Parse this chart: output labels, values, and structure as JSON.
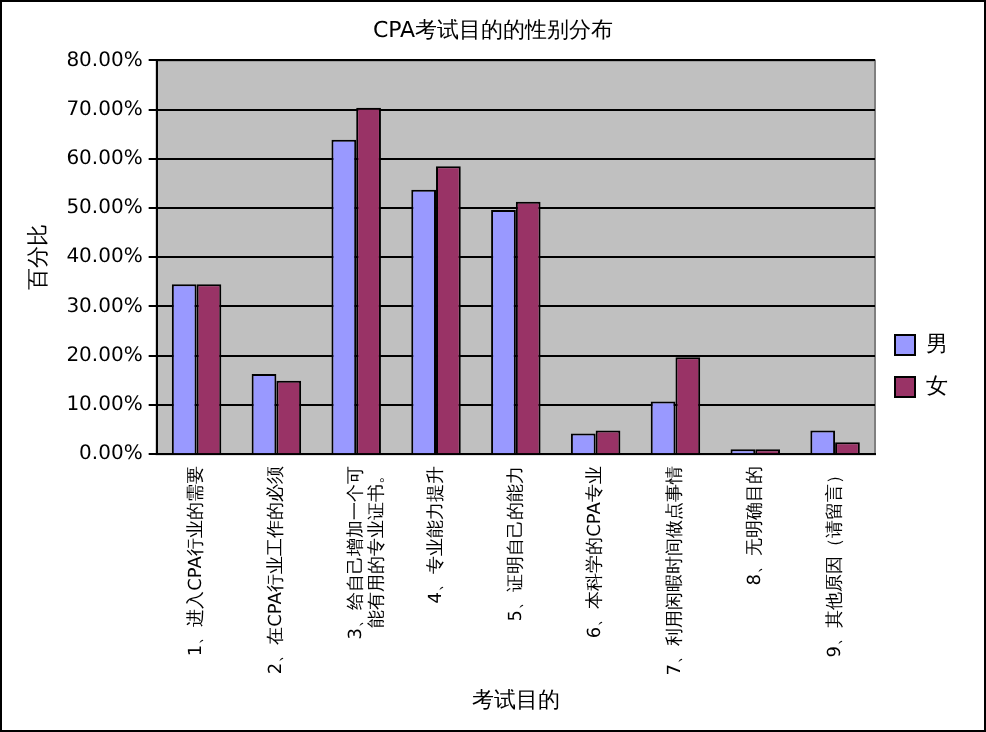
{
  "chart_data": {
    "type": "bar",
    "title": "CPA考试目的的性别分布",
    "xlabel": "考试目的",
    "ylabel": "百分比",
    "categories": [
      "1、进入CPA行业的需要",
      "2、在CPA行业工作的必须",
      "3、给自己增加一个可能有用的专业证书。",
      "4、专业能力提升",
      "5、证明自己的能力",
      "6、本科学的CPA专业",
      "7、利用闲暇时间做点事情",
      "8、无明确目的",
      "9、其他原因（请留言）"
    ],
    "series": [
      {
        "name": "男",
        "color": "#9999ff",
        "values": [
          34.5,
          16.3,
          63.9,
          53.7,
          49.6,
          4.2,
          10.7,
          1.0,
          4.8
        ]
      },
      {
        "name": "女",
        "color": "#993366",
        "values": [
          34.5,
          14.9,
          70.4,
          58.5,
          51.3,
          4.8,
          19.7,
          1.0,
          2.4
        ]
      }
    ],
    "ylim": [
      0,
      80
    ],
    "yticks": [
      {
        "value": 0,
        "label": "0.00%"
      },
      {
        "value": 10,
        "label": "10.00%"
      },
      {
        "value": 20,
        "label": "20.00%"
      },
      {
        "value": 30,
        "label": "30.00%"
      },
      {
        "value": 40,
        "label": "40.00%"
      },
      {
        "value": 50,
        "label": "50.00%"
      },
      {
        "value": 60,
        "label": "60.00%"
      },
      {
        "value": 70,
        "label": "70.00%"
      },
      {
        "value": 80,
        "label": "80.00%"
      }
    ],
    "grid": "y",
    "legend": "right"
  }
}
